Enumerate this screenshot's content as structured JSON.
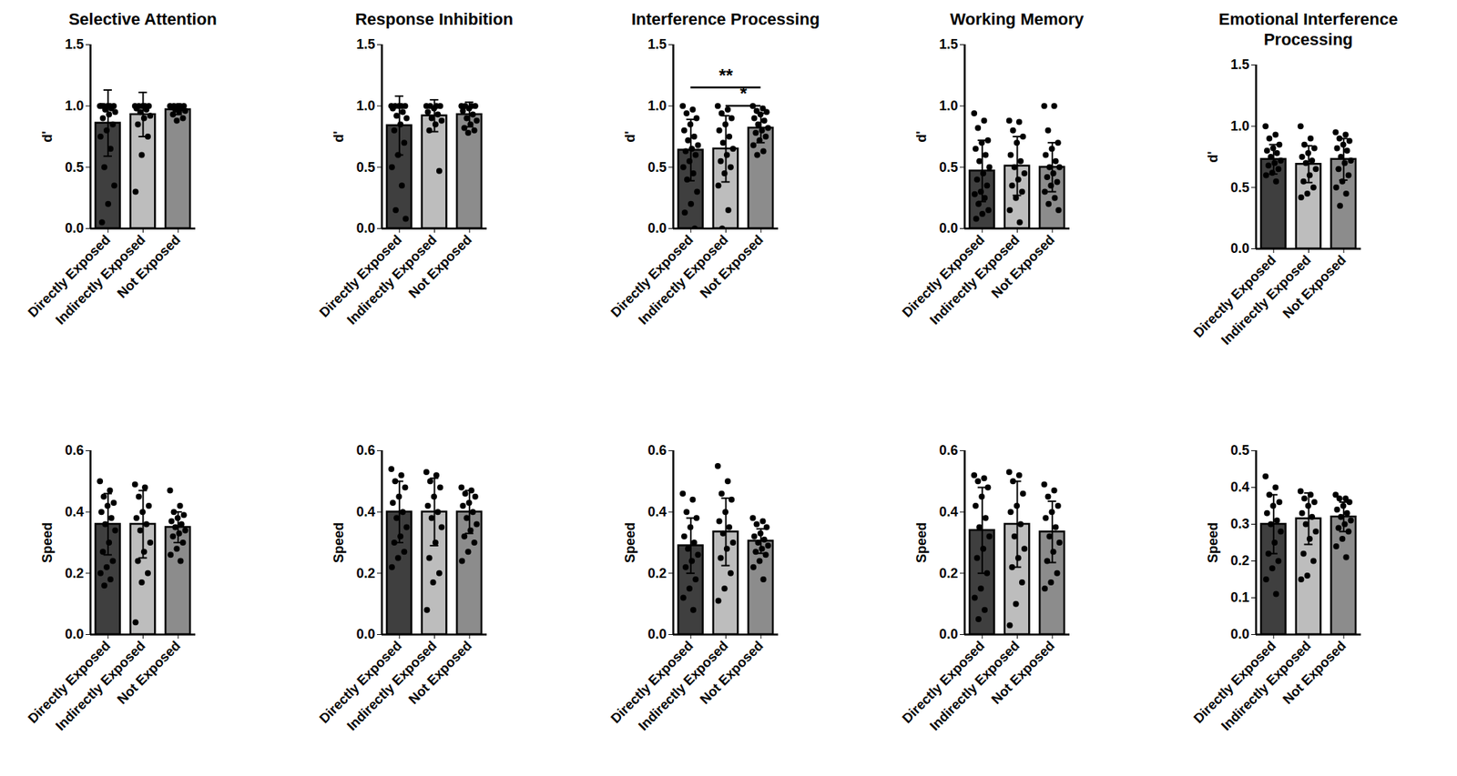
{
  "chart_data": [
    {
      "type": "bar",
      "title": "Selective Attention",
      "ylabel": "d'",
      "categories": [
        "Directly Exposed",
        "Indirectly Exposed",
        "Not Exposed"
      ],
      "colors": [
        "#3f3f3f",
        "#bdbdbd",
        "#8c8c8c"
      ],
      "values": [
        0.86,
        0.93,
        0.97
      ],
      "errors": [
        0.27,
        0.18,
        0.04
      ],
      "points": [
        [
          1,
          1,
          1,
          1,
          1,
          1,
          0.98,
          0.97,
          0.95,
          0.93,
          0.9,
          0.85,
          0.8,
          0.75,
          0.65,
          0.5,
          0.35,
          0.2,
          0.05
        ],
        [
          1,
          1,
          1,
          1,
          1,
          0.98,
          0.97,
          0.95,
          0.92,
          0.9,
          0.85,
          0.75,
          0.6,
          0.3
        ],
        [
          1,
          1,
          1,
          1,
          1,
          0.99,
          0.98,
          0.97,
          0.96,
          0.95,
          0.93,
          0.9,
          0.88
        ]
      ],
      "ylim": [
        0,
        1.5
      ],
      "yticks": [
        {
          "value": 0,
          "label": "0.0"
        },
        0.5,
        {
          "value": 1,
          "label": "1.0"
        },
        1.5
      ]
    },
    {
      "type": "bar",
      "title": "Response Inhibition",
      "ylabel": "d'",
      "categories": [
        "Directly Exposed",
        "Indirectly Exposed",
        "Not Exposed"
      ],
      "colors": [
        "#3f3f3f",
        "#bdbdbd",
        "#8c8c8c"
      ],
      "values": [
        0.84,
        0.92,
        0.93
      ],
      "errors": [
        0.24,
        0.13,
        0.1
      ],
      "points": [
        [
          1,
          1,
          1,
          1,
          1,
          0.98,
          0.95,
          0.92,
          0.9,
          0.85,
          0.8,
          0.7,
          0.6,
          0.5,
          0.35,
          0.15,
          0.08
        ],
        [
          1,
          1,
          1,
          1,
          0.98,
          0.95,
          0.93,
          0.9,
          0.88,
          0.85,
          0.8,
          0.47
        ],
        [
          1,
          1,
          1,
          1,
          0.98,
          0.96,
          0.93,
          0.9,
          0.88,
          0.85,
          0.82,
          0.8,
          0.78
        ]
      ],
      "ylim": [
        0,
        1.5
      ],
      "yticks": [
        {
          "value": 0,
          "label": "0.0"
        },
        0.5,
        {
          "value": 1,
          "label": "1.0"
        },
        1.5
      ]
    },
    {
      "type": "bar",
      "title": "Interference Processing",
      "ylabel": "d'",
      "categories": [
        "Directly Exposed",
        "Indirectly Exposed",
        "Not Exposed"
      ],
      "colors": [
        "#3f3f3f",
        "#bdbdbd",
        "#8c8c8c"
      ],
      "values": [
        0.64,
        0.65,
        0.82
      ],
      "errors": [
        0.25,
        0.27,
        0.12
      ],
      "points": [
        [
          1,
          0.97,
          0.94,
          0.9,
          0.85,
          0.8,
          0.75,
          0.72,
          0.68,
          0.65,
          0.63,
          0.6,
          0.55,
          0.5,
          0.45,
          0.4,
          0.3,
          0.2,
          0.13,
          0
        ],
        [
          1,
          0.97,
          0.94,
          0.9,
          0.85,
          0.8,
          0.75,
          0.7,
          0.65,
          0.6,
          0.55,
          0.5,
          0.45,
          0.35,
          0.15,
          0
        ],
        [
          1,
          0.98,
          0.96,
          0.95,
          0.93,
          0.9,
          0.88,
          0.85,
          0.82,
          0.8,
          0.78,
          0.75,
          0.72,
          0.68,
          0.63,
          0.6
        ]
      ],
      "ylim": [
        0,
        1.5
      ],
      "yticks": [
        {
          "value": 0,
          "label": "0.0"
        },
        0.5,
        {
          "value": 1,
          "label": "1.0"
        },
        1.5
      ],
      "annotations": [
        {
          "text": "**",
          "from": "Directly Exposed",
          "to": "Not Exposed"
        },
        {
          "text": "*",
          "from": "Indirectly Exposed",
          "to": "Not Exposed"
        }
      ]
    },
    {
      "type": "bar",
      "title": "Working Memory",
      "ylabel": "d'",
      "categories": [
        "Directly Exposed",
        "Indirectly Exposed",
        "Not Exposed"
      ],
      "colors": [
        "#3f3f3f",
        "#bdbdbd",
        "#8c8c8c"
      ],
      "values": [
        0.47,
        0.51,
        0.5
      ],
      "errors": [
        0.25,
        0.24,
        0.2
      ],
      "points": [
        [
          0.94,
          0.88,
          0.82,
          0.72,
          0.7,
          0.65,
          0.6,
          0.55,
          0.5,
          0.45,
          0.4,
          0.35,
          0.3,
          0.28,
          0.25,
          0.2,
          0.15,
          0.12,
          0.08
        ],
        [
          0.88,
          0.87,
          0.8,
          0.75,
          0.7,
          0.6,
          0.55,
          0.5,
          0.45,
          0.4,
          0.35,
          0.3,
          0.25,
          0.15,
          0.05
        ],
        [
          1,
          1,
          0.8,
          0.7,
          0.65,
          0.6,
          0.55,
          0.5,
          0.5,
          0.45,
          0.42,
          0.38,
          0.35,
          0.3,
          0.25,
          0.2,
          0.15
        ]
      ],
      "ylim": [
        0,
        1.5
      ],
      "yticks": [
        {
          "value": 0,
          "label": "0.0"
        },
        0.5,
        {
          "value": 1,
          "label": "1.0"
        },
        1.5
      ]
    },
    {
      "type": "bar",
      "title": "Emotional Interference Processing",
      "ylabel": "d'",
      "categories": [
        "Directly Exposed",
        "Indirectly Exposed",
        "Not Exposed"
      ],
      "colors": [
        "#3f3f3f",
        "#bdbdbd",
        "#8c8c8c"
      ],
      "values": [
        0.73,
        0.69,
        0.73
      ],
      "errors": [
        0.12,
        0.15,
        0.17
      ],
      "points": [
        [
          1,
          0.93,
          0.9,
          0.85,
          0.82,
          0.8,
          0.78,
          0.75,
          0.72,
          0.7,
          0.68,
          0.65,
          0.62,
          0.6,
          0.55
        ],
        [
          1,
          0.9,
          0.85,
          0.82,
          0.78,
          0.75,
          0.72,
          0.7,
          0.65,
          0.6,
          0.55,
          0.5,
          0.45,
          0.42
        ],
        [
          0.95,
          0.93,
          0.9,
          0.88,
          0.85,
          0.82,
          0.8,
          0.75,
          0.72,
          0.7,
          0.65,
          0.6,
          0.55,
          0.5,
          0.45,
          0.35
        ]
      ],
      "ylim": [
        0,
        1.5
      ],
      "yticks": [
        {
          "value": 0,
          "label": "0.0"
        },
        0.5,
        {
          "value": 1,
          "label": "1.0"
        },
        1.5
      ]
    },
    {
      "type": "bar",
      "ylabel": "Speed",
      "categories": [
        "Directly Exposed",
        "Indirectly Exposed",
        "Not Exposed"
      ],
      "colors": [
        "#3f3f3f",
        "#bdbdbd",
        "#8c8c8c"
      ],
      "values": [
        0.36,
        0.36,
        0.35
      ],
      "errors": [
        0.1,
        0.11,
        0.05
      ],
      "points": [
        [
          0.5,
          0.47,
          0.45,
          0.43,
          0.42,
          0.4,
          0.38,
          0.36,
          0.34,
          0.3,
          0.27,
          0.24,
          0.22,
          0.2,
          0.18,
          0.16
        ],
        [
          0.49,
          0.48,
          0.45,
          0.42,
          0.4,
          0.38,
          0.36,
          0.34,
          0.3,
          0.27,
          0.24,
          0.2,
          0.17,
          0.04
        ],
        [
          0.47,
          0.42,
          0.4,
          0.39,
          0.38,
          0.37,
          0.36,
          0.35,
          0.34,
          0.33,
          0.32,
          0.3,
          0.28,
          0.26,
          0.24
        ]
      ],
      "ylim": [
        0,
        0.6
      ],
      "yticks": [
        {
          "value": 0,
          "label": "0.0"
        },
        0.2,
        0.4,
        0.6
      ]
    },
    {
      "type": "bar",
      "ylabel": "Speed",
      "categories": [
        "Directly Exposed",
        "Indirectly Exposed",
        "Not Exposed"
      ],
      "colors": [
        "#3f3f3f",
        "#bdbdbd",
        "#8c8c8c"
      ],
      "values": [
        0.4,
        0.4,
        0.4
      ],
      "errors": [
        0.1,
        0.11,
        0.07
      ],
      "points": [
        [
          0.54,
          0.52,
          0.5,
          0.48,
          0.45,
          0.43,
          0.4,
          0.38,
          0.35,
          0.32,
          0.3,
          0.27,
          0.25,
          0.22
        ],
        [
          0.53,
          0.52,
          0.5,
          0.48,
          0.45,
          0.42,
          0.4,
          0.38,
          0.35,
          0.3,
          0.25,
          0.2,
          0.17,
          0.08
        ],
        [
          0.48,
          0.47,
          0.46,
          0.45,
          0.43,
          0.42,
          0.4,
          0.38,
          0.36,
          0.34,
          0.32,
          0.3,
          0.27,
          0.24
        ]
      ],
      "ylim": [
        0,
        0.6
      ],
      "yticks": [
        {
          "value": 0,
          "label": "0.0"
        },
        0.2,
        0.4,
        0.6
      ]
    },
    {
      "type": "bar",
      "ylabel": "Speed",
      "categories": [
        "Directly Exposed",
        "Indirectly Exposed",
        "Not Exposed"
      ],
      "colors": [
        "#3f3f3f",
        "#bdbdbd",
        "#8c8c8c"
      ],
      "values": [
        0.29,
        0.335,
        0.305
      ],
      "errors": [
        0.09,
        0.11,
        0.04
      ],
      "points": [
        [
          0.46,
          0.44,
          0.4,
          0.38,
          0.35,
          0.32,
          0.3,
          0.28,
          0.26,
          0.24,
          0.22,
          0.18,
          0.15,
          0.12,
          0.08
        ],
        [
          0.55,
          0.5,
          0.46,
          0.44,
          0.4,
          0.37,
          0.35,
          0.33,
          0.3,
          0.28,
          0.25,
          0.2,
          0.15,
          0.11
        ],
        [
          0.38,
          0.37,
          0.36,
          0.35,
          0.33,
          0.32,
          0.31,
          0.3,
          0.29,
          0.28,
          0.27,
          0.26,
          0.24,
          0.22,
          0.18
        ]
      ],
      "ylim": [
        0,
        0.6
      ],
      "yticks": [
        {
          "value": 0,
          "label": "0.0"
        },
        0.2,
        0.4,
        0.6
      ]
    },
    {
      "type": "bar",
      "ylabel": "Speed",
      "categories": [
        "Directly Exposed",
        "Indirectly Exposed",
        "Not Exposed"
      ],
      "colors": [
        "#3f3f3f",
        "#bdbdbd",
        "#8c8c8c"
      ],
      "values": [
        0.34,
        0.36,
        0.335
      ],
      "errors": [
        0.14,
        0.14,
        0.1
      ],
      "points": [
        [
          0.52,
          0.51,
          0.5,
          0.48,
          0.45,
          0.42,
          0.38,
          0.35,
          0.32,
          0.28,
          0.25,
          0.2,
          0.15,
          0.12,
          0.08,
          0.05
        ],
        [
          0.53,
          0.52,
          0.5,
          0.46,
          0.42,
          0.4,
          0.36,
          0.32,
          0.28,
          0.25,
          0.22,
          0.17,
          0.1,
          0.03
        ],
        [
          0.49,
          0.47,
          0.45,
          0.42,
          0.4,
          0.38,
          0.35,
          0.32,
          0.3,
          0.27,
          0.24,
          0.2,
          0.17,
          0.15
        ]
      ],
      "ylim": [
        0,
        0.6
      ],
      "yticks": [
        {
          "value": 0,
          "label": "0.0"
        },
        0.2,
        0.4,
        0.6
      ]
    },
    {
      "type": "bar",
      "ylabel": "Speed",
      "categories": [
        "Directly Exposed",
        "Indirectly Exposed",
        "Not Exposed"
      ],
      "colors": [
        "#3f3f3f",
        "#bdbdbd",
        "#8c8c8c"
      ],
      "values": [
        0.3,
        0.315,
        0.32
      ],
      "errors": [
        0.08,
        0.07,
        0.04
      ],
      "points": [
        [
          0.43,
          0.4,
          0.38,
          0.36,
          0.35,
          0.33,
          0.31,
          0.3,
          0.28,
          0.25,
          0.22,
          0.2,
          0.18,
          0.15,
          0.11
        ],
        [
          0.39,
          0.38,
          0.37,
          0.36,
          0.35,
          0.33,
          0.32,
          0.3,
          0.28,
          0.26,
          0.22,
          0.2,
          0.16,
          0.15
        ],
        [
          0.38,
          0.37,
          0.37,
          0.36,
          0.35,
          0.34,
          0.33,
          0.32,
          0.31,
          0.3,
          0.29,
          0.28,
          0.26,
          0.24,
          0.21
        ]
      ],
      "ylim": [
        0,
        0.5
      ],
      "yticks": [
        {
          "value": 0,
          "label": "0.0"
        },
        0.1,
        0.2,
        0.3,
        0.4,
        0.5
      ]
    }
  ]
}
